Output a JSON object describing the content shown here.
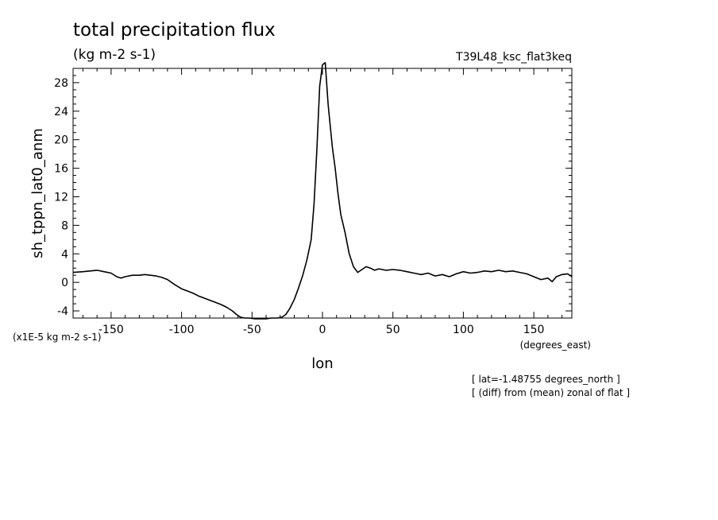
{
  "chart_data": {
    "type": "line",
    "title": "total precipitation flux",
    "units": "(kg m-2 s-1)",
    "dataset": "T39L48_ksc_flat3keq",
    "ylabel": "sh_tppn_lat0_anm",
    "xlabel": "lon",
    "x_units": "(degrees_east)",
    "y_scale_note": "(x1E-5 kg m-2 s-1)",
    "footnotes": [
      "[ lat=-1.48755 degrees_north ]",
      "[ (diff) from (mean) zonal of flat ]"
    ],
    "xlim": [
      -177,
      177
    ],
    "ylim": [
      -5,
      30
    ],
    "x_ticks": [
      -150,
      -100,
      -50,
      0,
      50,
      100,
      150
    ],
    "x_tick_labels": [
      "-150",
      "-100",
      "-50",
      "0",
      "50",
      "100",
      "150"
    ],
    "y_ticks": [
      -4,
      0,
      4,
      8,
      12,
      16,
      20,
      24,
      28
    ],
    "y_tick_labels": [
      "-4",
      "0",
      "4",
      "8",
      "12",
      "16",
      "20",
      "24",
      "28"
    ],
    "series": [
      {
        "x": [
          -177,
          -170,
          -165,
          -160,
          -155,
          -150,
          -146,
          -143,
          -140,
          -135,
          -130,
          -126,
          -122,
          -118,
          -114,
          -110,
          -105,
          -100,
          -96,
          -92,
          -88,
          -84,
          -80,
          -76,
          -72,
          -68,
          -64,
          -61,
          -58,
          -55,
          -52,
          -48,
          -44,
          -40,
          -36,
          -32,
          -29,
          -26,
          -23,
          -20,
          -17,
          -14,
          -11,
          -8,
          -6,
          -4,
          -2,
          0,
          2,
          4,
          7,
          9,
          11,
          13,
          16,
          19,
          22,
          25,
          28,
          31,
          34,
          37,
          40,
          45,
          50,
          55,
          60,
          65,
          70,
          75,
          80,
          85,
          90,
          95,
          100,
          105,
          110,
          115,
          120,
          125,
          130,
          135,
          140,
          145,
          150,
          155,
          160,
          163,
          166,
          170,
          174,
          177
        ],
        "y": [
          1.4,
          1.5,
          1.6,
          1.7,
          1.5,
          1.3,
          0.8,
          0.6,
          0.8,
          1.0,
          1.0,
          1.1,
          1.0,
          0.9,
          0.7,
          0.4,
          -0.3,
          -0.9,
          -1.2,
          -1.5,
          -1.9,
          -2.2,
          -2.5,
          -2.8,
          -3.1,
          -3.5,
          -4.0,
          -4.5,
          -4.9,
          -5.0,
          -5.0,
          -5.1,
          -5.1,
          -5.1,
          -5.0,
          -5.0,
          -4.9,
          -4.5,
          -3.6,
          -2.4,
          -0.8,
          1.0,
          3.2,
          6.0,
          11.0,
          18.5,
          27.5,
          30.5,
          30.8,
          25.0,
          19.0,
          16.0,
          12.5,
          9.5,
          7.0,
          4.0,
          2.2,
          1.4,
          1.8,
          2.2,
          2.0,
          1.7,
          1.9,
          1.7,
          1.8,
          1.7,
          1.5,
          1.3,
          1.1,
          1.3,
          0.9,
          1.1,
          0.8,
          1.2,
          1.5,
          1.3,
          1.4,
          1.6,
          1.5,
          1.7,
          1.5,
          1.6,
          1.4,
          1.2,
          0.8,
          0.4,
          0.6,
          0.1,
          0.8,
          1.1,
          1.2,
          0.8
        ]
      }
    ]
  }
}
